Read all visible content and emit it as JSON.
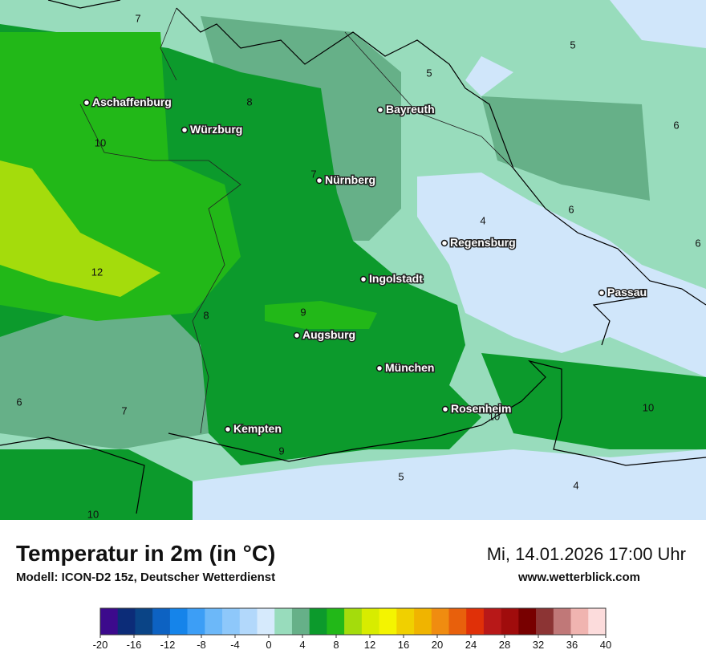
{
  "title": "Temperatur in 2m (in °C)",
  "subtitle": "Modell: ICON-D2 15z, Deutscher Wetterdienst",
  "datetime": "Mi, 14.01.2026 17:00 Uhr",
  "website": "www.wetterblick.com",
  "cities": [
    "Aschaffenburg",
    "Würzburg",
    "Bayreuth",
    "Nürnberg",
    "Regensburg",
    "Ingolstadt",
    "Passau",
    "Augsburg",
    "München",
    "Rosenheim",
    "Kempten"
  ],
  "contour_labels": [
    7,
    8,
    10,
    5,
    5,
    6,
    7,
    4,
    6,
    6,
    12,
    8,
    9,
    6,
    7,
    10,
    10,
    9,
    5,
    4,
    10
  ],
  "colorbar": {
    "lim": [
      -20,
      40
    ],
    "colors": [
      "#3c0a8c",
      "#0c2c78",
      "#0a4486",
      "#0d62c2",
      "#1584ea",
      "#3c9ef6",
      "#6cb8f9",
      "#8ec8fa",
      "#b2d8fb",
      "#d6eafc",
      "#98dcbc",
      "#66b088",
      "#0c9a2c",
      "#22b818",
      "#a4dc0c",
      "#d8ec00",
      "#f4f400",
      "#f0d000",
      "#f0b400",
      "#f08c10",
      "#e8600c",
      "#e03008",
      "#b81818",
      "#a00c0c",
      "#780000",
      "#8c3434",
      "#c07878",
      "#f0b4b0",
      "#fcdcdc"
    ],
    "ticks": [
      -20,
      -16,
      -12,
      -8,
      -4,
      0,
      4,
      8,
      12,
      16,
      20,
      24,
      28,
      32,
      36,
      40
    ]
  }
}
